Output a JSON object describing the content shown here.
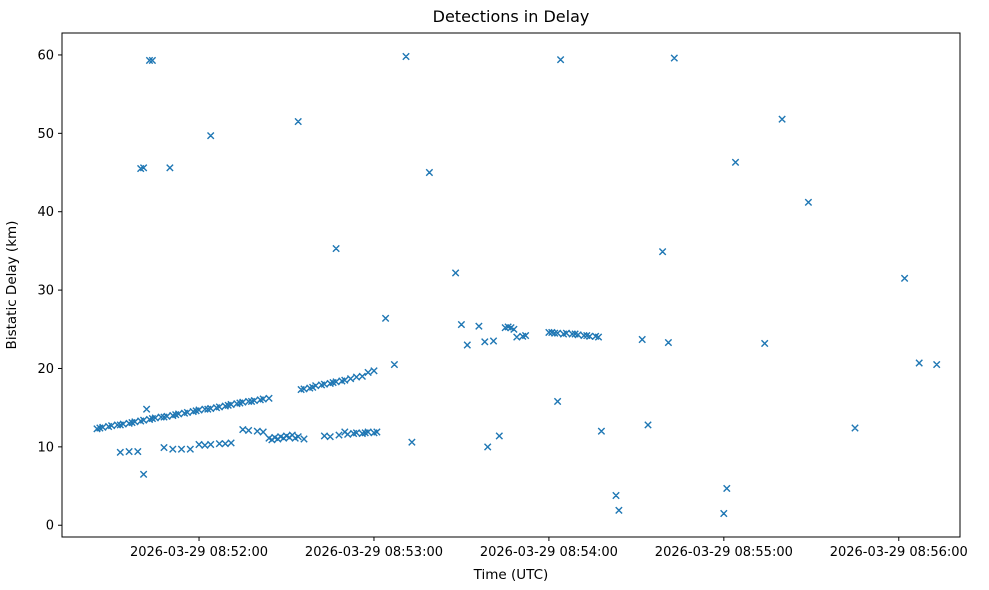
{
  "figure": {
    "background_color": "#ffffff",
    "spine_color": "#000000"
  },
  "chart_data": {
    "type": "scatter",
    "title": "Detections in Delay",
    "xlabel": "Time (UTC)",
    "ylabel": "Bistatic Delay (km)",
    "legend": null,
    "grid": false,
    "marker": "x",
    "marker_color": "#1f77b4",
    "marker_half_px": 3.2,
    "x_unit": "seconds after 2026-03-29 08:51:00",
    "xlim": [
      13,
      321
    ],
    "ylim": [
      -1.5,
      62.8
    ],
    "y_ticks": [
      0,
      10,
      20,
      30,
      40,
      50,
      60
    ],
    "x_ticks": [
      {
        "s": 60,
        "label": "2026-03-29 08:52:00"
      },
      {
        "s": 120,
        "label": "2026-03-29 08:53:00"
      },
      {
        "s": 180,
        "label": "2026-03-29 08:54:00"
      },
      {
        "s": 240,
        "label": "2026-03-29 08:55:00"
      },
      {
        "s": 300,
        "label": "2026-03-29 08:56:00"
      }
    ],
    "points": [
      [
        25,
        12.3
      ],
      [
        26,
        12.4
      ],
      [
        27,
        12.5
      ],
      [
        29,
        12.6
      ],
      [
        30,
        12.7
      ],
      [
        32,
        12.8
      ],
      [
        33,
        12.8
      ],
      [
        34,
        12.9
      ],
      [
        36,
        13.0
      ],
      [
        37,
        13.1
      ],
      [
        38,
        13.2
      ],
      [
        40,
        13.3
      ],
      [
        41,
        13.4
      ],
      [
        43,
        13.5
      ],
      [
        44,
        13.6
      ],
      [
        45,
        13.7
      ],
      [
        47,
        13.8
      ],
      [
        48,
        13.8
      ],
      [
        49,
        13.9
      ],
      [
        51,
        14.0
      ],
      [
        52,
        14.1
      ],
      [
        53,
        14.2
      ],
      [
        55,
        14.3
      ],
      [
        56,
        14.4
      ],
      [
        58,
        14.5
      ],
      [
        59,
        14.6
      ],
      [
        60,
        14.7
      ],
      [
        62,
        14.8
      ],
      [
        63,
        14.8
      ],
      [
        64,
        14.9
      ],
      [
        66,
        15.0
      ],
      [
        67,
        15.1
      ],
      [
        69,
        15.2
      ],
      [
        70,
        15.3
      ],
      [
        71,
        15.4
      ],
      [
        73,
        15.5
      ],
      [
        74,
        15.6
      ],
      [
        75,
        15.7
      ],
      [
        77,
        15.8
      ],
      [
        78,
        15.8
      ],
      [
        79,
        15.9
      ],
      [
        81,
        16.0
      ],
      [
        82,
        16.1
      ],
      [
        84,
        16.2
      ],
      [
        95,
        17.3
      ],
      [
        96,
        17.4
      ],
      [
        98,
        17.5
      ],
      [
        99,
        17.6
      ],
      [
        100,
        17.8
      ],
      [
        102,
        17.9
      ],
      [
        103,
        18.0
      ],
      [
        105,
        18.1
      ],
      [
        106,
        18.2
      ],
      [
        107,
        18.3
      ],
      [
        109,
        18.4
      ],
      [
        110,
        18.5
      ],
      [
        112,
        18.7
      ],
      [
        114,
        18.9
      ],
      [
        116,
        19.0
      ],
      [
        118,
        19.5
      ],
      [
        120,
        19.7
      ],
      [
        33,
        9.3
      ],
      [
        36,
        9.4
      ],
      [
        39,
        9.4
      ],
      [
        48,
        9.9
      ],
      [
        51,
        9.7
      ],
      [
        54,
        9.7
      ],
      [
        57,
        9.7
      ],
      [
        60,
        10.3
      ],
      [
        62,
        10.2
      ],
      [
        64,
        10.3
      ],
      [
        67,
        10.4
      ],
      [
        69,
        10.4
      ],
      [
        71,
        10.5
      ],
      [
        75,
        12.2
      ],
      [
        77,
        12.1
      ],
      [
        80,
        12.0
      ],
      [
        82,
        11.9
      ],
      [
        84,
        11.1
      ],
      [
        85,
        10.9
      ],
      [
        86,
        11.2
      ],
      [
        87,
        11.0
      ],
      [
        88,
        11.3
      ],
      [
        89,
        11.1
      ],
      [
        90,
        11.4
      ],
      [
        91,
        11.2
      ],
      [
        92,
        11.5
      ],
      [
        93,
        11.1
      ],
      [
        94,
        11.3
      ],
      [
        96,
        11.0
      ],
      [
        103,
        11.4
      ],
      [
        105,
        11.3
      ],
      [
        108,
        11.5
      ],
      [
        110,
        11.9
      ],
      [
        111,
        11.6
      ],
      [
        113,
        11.7
      ],
      [
        114,
        11.8
      ],
      [
        116,
        11.7
      ],
      [
        117,
        11.8
      ],
      [
        118,
        11.9
      ],
      [
        120,
        11.8
      ],
      [
        121,
        11.9
      ],
      [
        150,
        25.6
      ],
      [
        152,
        23.0
      ],
      [
        156,
        25.4
      ],
      [
        158,
        23.4
      ],
      [
        161,
        23.5
      ],
      [
        165,
        25.2
      ],
      [
        166,
        25.3
      ],
      [
        167,
        25.2
      ],
      [
        168,
        25.0
      ],
      [
        169,
        24.0
      ],
      [
        171,
        24.1
      ],
      [
        172,
        24.2
      ],
      [
        180,
        24.6
      ],
      [
        181,
        24.6
      ],
      [
        182,
        24.5
      ],
      [
        183,
        24.5
      ],
      [
        185,
        24.4
      ],
      [
        186,
        24.5
      ],
      [
        188,
        24.4
      ],
      [
        189,
        24.4
      ],
      [
        190,
        24.3
      ],
      [
        192,
        24.2
      ],
      [
        193,
        24.2
      ],
      [
        194,
        24.1
      ],
      [
        196,
        24.1
      ],
      [
        197,
        24.0
      ],
      [
        43,
        59.3
      ],
      [
        44,
        59.3
      ],
      [
        131,
        59.8
      ],
      [
        184,
        59.4
      ],
      [
        223,
        59.6
      ],
      [
        94,
        51.5
      ],
      [
        260,
        51.8
      ],
      [
        64,
        49.7
      ],
      [
        244,
        46.3
      ],
      [
        40,
        45.5
      ],
      [
        41,
        45.6
      ],
      [
        50,
        45.6
      ],
      [
        139,
        45.0
      ],
      [
        269,
        41.2
      ],
      [
        107,
        35.3
      ],
      [
        219,
        34.9
      ],
      [
        148,
        32.2
      ],
      [
        302,
        31.5
      ],
      [
        124,
        26.4
      ],
      [
        127,
        20.5
      ],
      [
        307,
        20.7
      ],
      [
        313,
        20.5
      ],
      [
        254,
        23.2
      ],
      [
        221,
        23.3
      ],
      [
        212,
        23.7
      ],
      [
        183,
        15.8
      ],
      [
        214,
        12.8
      ],
      [
        198,
        12.0
      ],
      [
        285,
        12.4
      ],
      [
        203,
        3.8
      ],
      [
        204,
        1.9
      ],
      [
        241,
        4.7
      ],
      [
        240,
        1.5
      ],
      [
        42,
        14.8
      ],
      [
        41,
        6.5
      ],
      [
        133,
        10.6
      ],
      [
        159,
        10.0
      ],
      [
        163,
        11.4
      ]
    ]
  }
}
